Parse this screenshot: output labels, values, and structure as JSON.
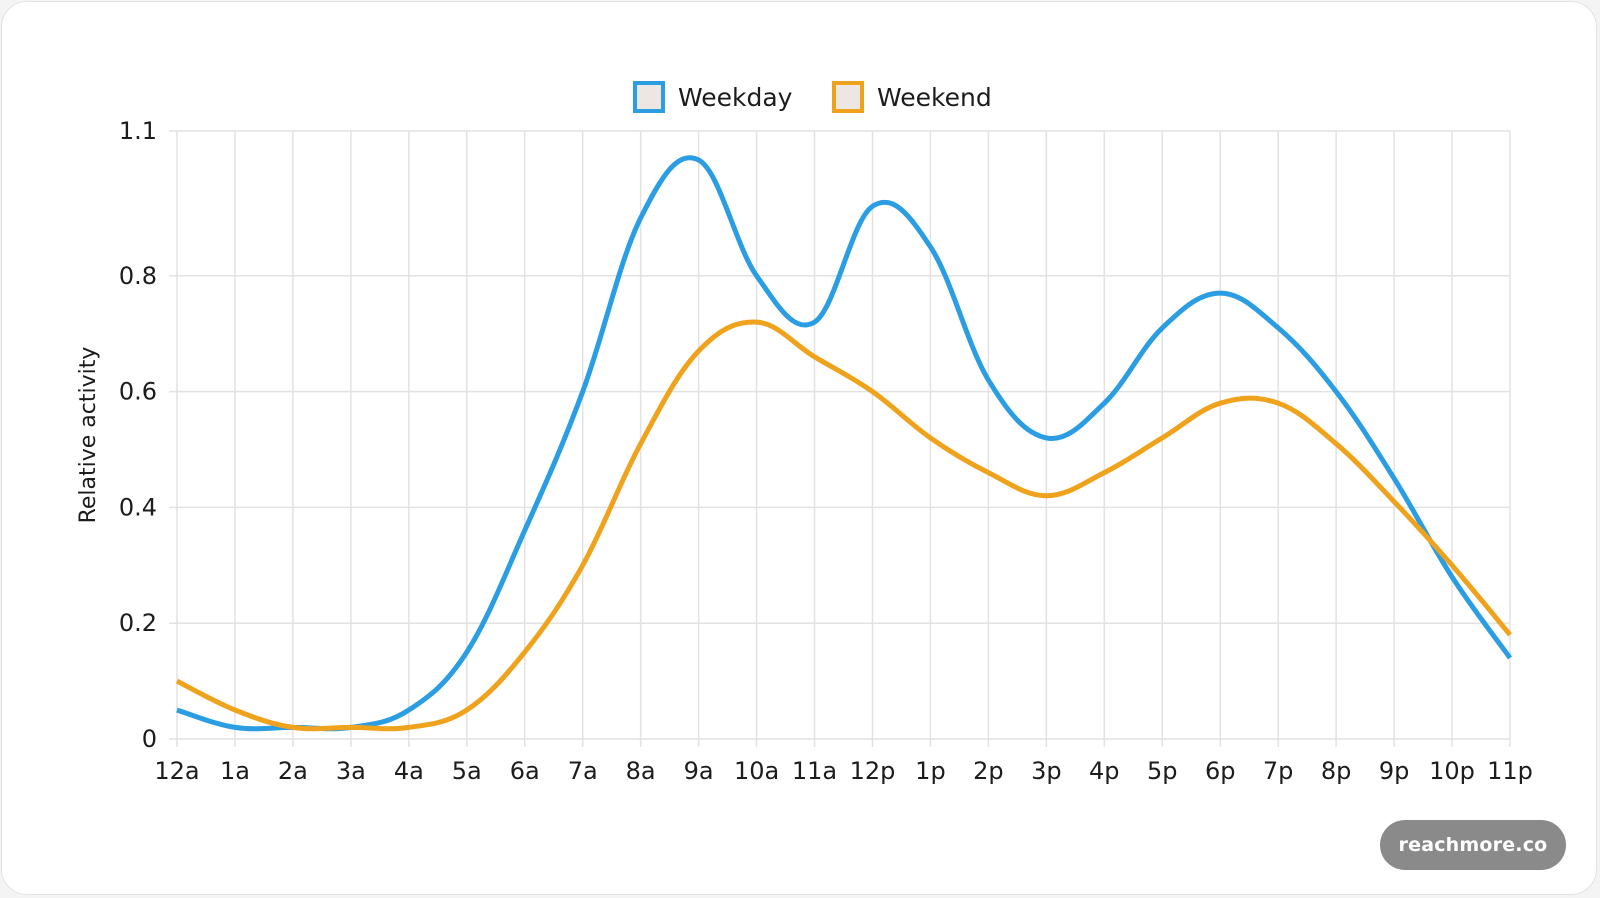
{
  "chart_data": {
    "type": "line",
    "title": "",
    "xlabel": "",
    "ylabel": "Relative activity",
    "categories": [
      "12a",
      "1a",
      "2a",
      "3a",
      "4a",
      "5a",
      "6a",
      "7a",
      "8a",
      "9a",
      "10a",
      "11a",
      "12p",
      "1p",
      "2p",
      "3p",
      "4p",
      "5p",
      "6p",
      "7p",
      "8p",
      "9p",
      "10p",
      "11p"
    ],
    "y_ticks": [
      "0",
      "0.2",
      "0.4",
      "0.6",
      "0.8",
      "1.1"
    ],
    "y_tick_values": [
      0,
      0.2,
      0.4,
      0.6,
      0.8,
      1.05
    ],
    "ylim": [
      0,
      1.05
    ],
    "grid": true,
    "legend_position": "top-center",
    "series": [
      {
        "name": "Weekday",
        "color": "#2a9de3",
        "values": [
          0.05,
          0.02,
          0.02,
          0.02,
          0.05,
          0.15,
          0.36,
          0.6,
          0.9,
          1.0,
          0.8,
          0.72,
          0.92,
          0.85,
          0.62,
          0.52,
          0.58,
          0.71,
          0.77,
          0.71,
          0.6,
          0.45,
          0.28,
          0.14
        ]
      },
      {
        "name": "Weekend",
        "color": "#efa21c",
        "values": [
          0.1,
          0.05,
          0.02,
          0.02,
          0.02,
          0.05,
          0.15,
          0.3,
          0.51,
          0.67,
          0.72,
          0.66,
          0.6,
          0.52,
          0.46,
          0.42,
          0.46,
          0.52,
          0.58,
          0.58,
          0.51,
          0.41,
          0.3,
          0.18
        ]
      }
    ]
  },
  "watermark": "reachmore.co"
}
